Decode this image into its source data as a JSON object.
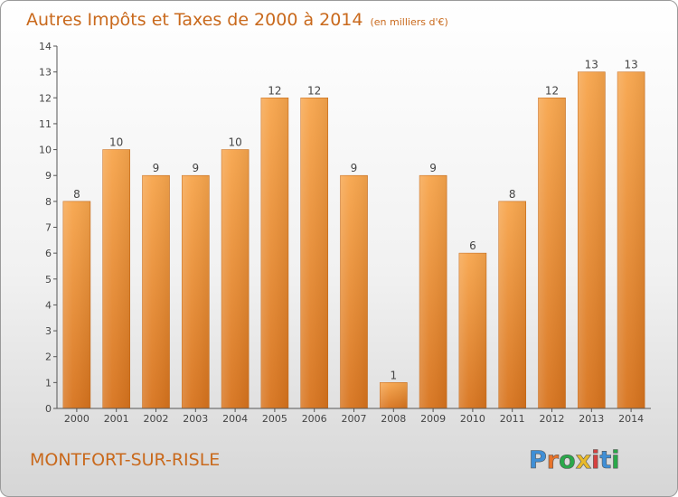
{
  "header": {
    "title": "Autres Impôts et Taxes de 2000 à 2014",
    "unit": "(en milliers d'€)"
  },
  "footer": {
    "city": "MONTFORT-SUR-RISLE",
    "logo_text": "Proxiti"
  },
  "colors": {
    "bar_top": "#f7a54c",
    "bar_bottom": "#d7731d",
    "accent": "#c9691c"
  },
  "chart_data": {
    "type": "bar",
    "categories": [
      "2000",
      "2001",
      "2002",
      "2003",
      "2004",
      "2005",
      "2006",
      "2007",
      "2008",
      "2009",
      "2010",
      "2011",
      "2012",
      "2013",
      "2014"
    ],
    "values": [
      8,
      10,
      9,
      9,
      10,
      12,
      12,
      9,
      1,
      9,
      6,
      8,
      12,
      13,
      13
    ],
    "ylim": [
      0,
      14
    ],
    "yticks": [
      0,
      1,
      2,
      3,
      4,
      5,
      6,
      7,
      8,
      9,
      10,
      11,
      12,
      13,
      14
    ],
    "ytick_labels": [
      "0",
      "1",
      "2",
      "3",
      "4",
      "5",
      "6",
      "7",
      "8",
      "9",
      "10",
      "11",
      "12",
      "13",
      "14"
    ],
    "grid": false,
    "value_labels": true
  }
}
